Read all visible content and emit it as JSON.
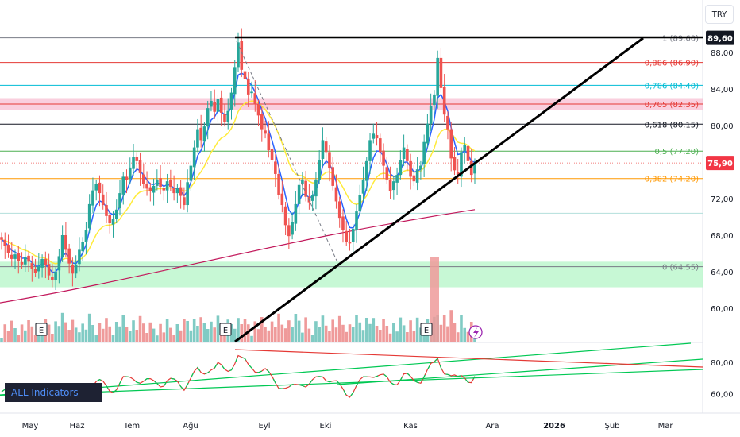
{
  "currency_label": "TRY",
  "indicators_label": "ALL Indicators",
  "last_price": "89,60",
  "current_price": "75,90",
  "price_axis": [
    "88,00",
    "84,00",
    "80,00",
    "76,00",
    "72,00",
    "68,00",
    "64,00",
    "60,00"
  ],
  "rsi_axis": [
    "80,00",
    "60,00"
  ],
  "time_axis": [
    "May",
    "Haz",
    "Tem",
    "Ağu",
    "Eyl",
    "Eki",
    "Kas",
    "Ara",
    "2026",
    "Şub",
    "Mar"
  ],
  "earnings_marker": "E",
  "fib_levels": [
    {
      "ratio": "1",
      "value": "(89,60)",
      "price": 89.6,
      "color": "#787b86"
    },
    {
      "ratio": "0,886",
      "value": "(86,90)",
      "price": 86.9,
      "color": "#e53935"
    },
    {
      "ratio": "0,786",
      "value": "(84,40)",
      "price": 84.4,
      "color": "#00bcd4"
    },
    {
      "ratio": "0,705",
      "value": "(82,35)",
      "price": 82.35,
      "color": "#e53935"
    },
    {
      "ratio": "0,618",
      "value": "(80,15)",
      "price": 80.15,
      "color": "#131722"
    },
    {
      "ratio": "0,5",
      "value": "(77,20)",
      "price": 77.2,
      "color": "#4caf50"
    },
    {
      "ratio": "0,382",
      "value": "(74,20)",
      "price": 74.2,
      "color": "#ff9800"
    },
    {
      "ratio": "0",
      "value": "(64,55)",
      "price": 64.55,
      "color": "#787b86"
    }
  ],
  "colors": {
    "up": "#26a69a",
    "down": "#ef5350",
    "badge_black": "#131722",
    "badge_red": "#f23645",
    "ema_fast": "#2962ff",
    "ema_mid": "#ffeb3b",
    "ema_slow": "#c2185b"
  },
  "chart_data": {
    "type": "candlestick",
    "symbol_currency": "TRY",
    "x_range": [
      "May",
      "Mar"
    ],
    "y_range": [
      57.5,
      91.5
    ],
    "closes": [
      67.5,
      66.8,
      66.0,
      65.4,
      65.9,
      65.2,
      64.8,
      65.6,
      65.1,
      64.3,
      63.9,
      64.6,
      65.4,
      64.7,
      63.6,
      63.1,
      64.0,
      65.7,
      68.0,
      66.4,
      64.9,
      63.8,
      64.7,
      66.4,
      67.3,
      68.6,
      71.4,
      72.9,
      73.6,
      72.6,
      71.3,
      70.1,
      69.3,
      69.8,
      70.8,
      72.6,
      74.4,
      74.0,
      75.4,
      76.6,
      76.1,
      74.8,
      73.6,
      73.1,
      72.8,
      73.4,
      74.1,
      73.3,
      72.9,
      73.9,
      73.3,
      72.6,
      73.1,
      72.3,
      71.3,
      73.8,
      75.6,
      77.6,
      79.6,
      78.4,
      79.9,
      81.9,
      82.7,
      81.5,
      82.9,
      81.4,
      80.4,
      81.6,
      83.6,
      86.4,
      89.1,
      86.1,
      85.1,
      83.4,
      83.7,
      82.3,
      81.1,
      79.6,
      79.1,
      77.3,
      76.2,
      74.7,
      72.4,
      71.3,
      69.1,
      67.9,
      69.4,
      71.4,
      73.5,
      74.1,
      72.2,
      71.6,
      72.4,
      74.1,
      76.2,
      78.4,
      77.1,
      75.3,
      73.4,
      71.7,
      69.9,
      68.6,
      67.3,
      67.1,
      68.7,
      70.6,
      72.4,
      74.1,
      76.1,
      78.4,
      79.1,
      78.6,
      77.1,
      75.6,
      74.1,
      72.8,
      73.9,
      74.6,
      76.2,
      77.6,
      76.1,
      74.4,
      73.9,
      75.2,
      75.6,
      78.2,
      80.2,
      82.1,
      83.4,
      87.4,
      84.1,
      81.2,
      79.6,
      76.4,
      75.1,
      74.4,
      77.1,
      77.9,
      76.1,
      74.6,
      75.9
    ],
    "volume_relative": "shown as histogram bars at bottom of price pane",
    "indicators": [
      "EMA fast (blue)",
      "EMA mid (yellow)",
      "EMA slow (crimson)",
      "RSI with trendlines"
    ],
    "rsi_axis_ticks": [
      80,
      60
    ]
  }
}
